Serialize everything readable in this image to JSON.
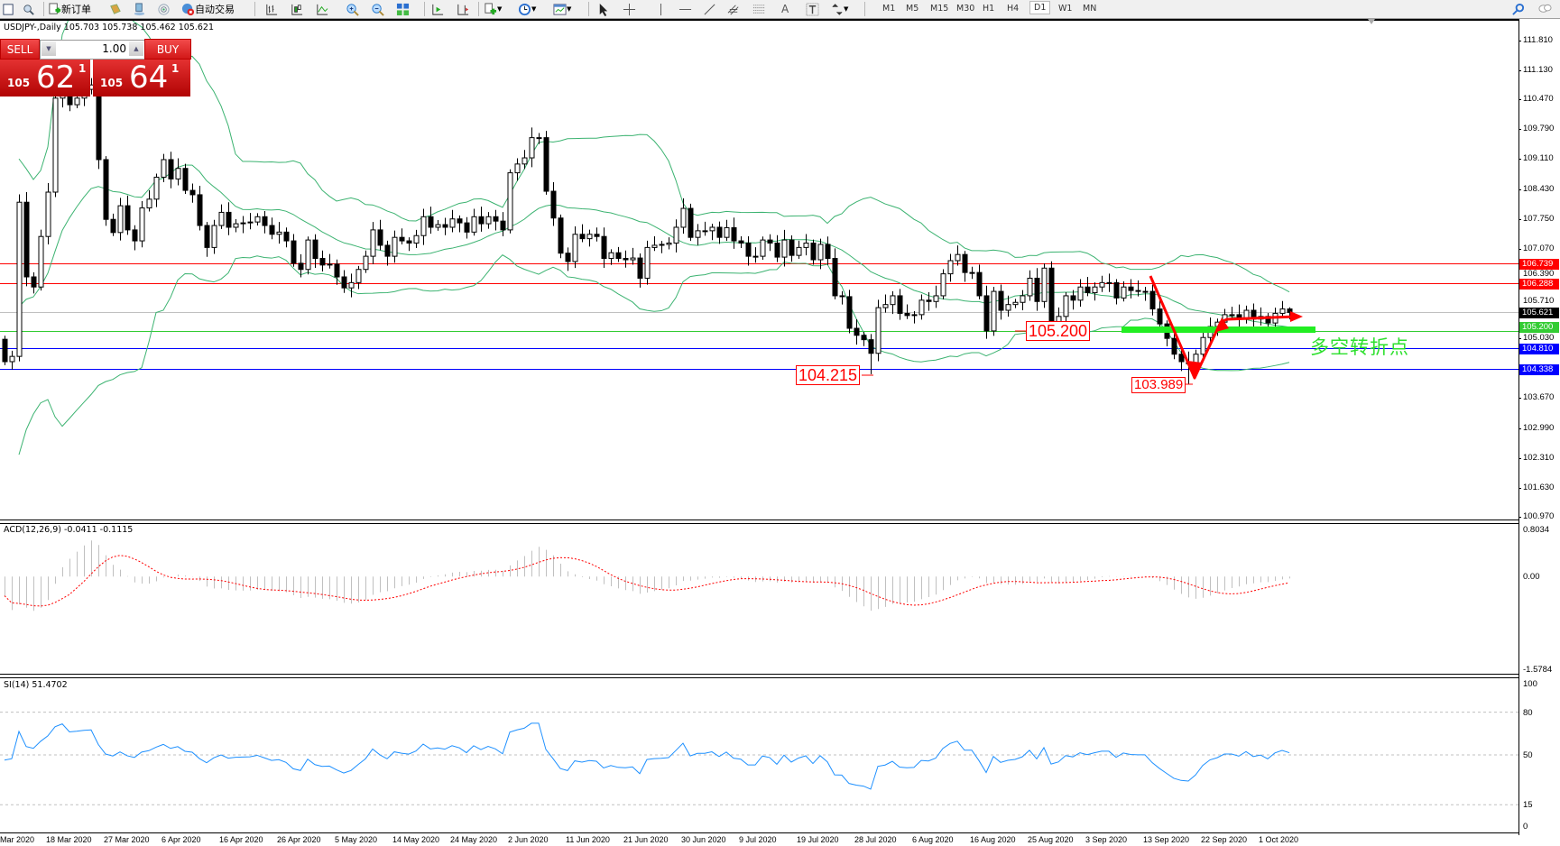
{
  "toolbar": {
    "new_order": "新订单",
    "auto_trading": "自动交易",
    "timeframes": [
      "M1",
      "M5",
      "M15",
      "M30",
      "H1",
      "H4",
      "D1",
      "W1",
      "MN"
    ],
    "active_timeframe": "D1",
    "icons": [
      "new-chart-icon",
      "navigator-icon",
      "new-order-icon",
      "metaeditor-icon",
      "market-watch-icon",
      "signals-icon",
      "auto-trading-icon",
      "bar-chart-icon",
      "candlestick-icon",
      "line-chart-icon",
      "zoom-in-icon",
      "zoom-out-icon",
      "tile-windows-icon",
      "autoscroll-icon",
      "chart-shift-icon",
      "indicators-icon",
      "periods-icon",
      "templates-icon",
      "cursor-icon",
      "crosshair-icon",
      "vertical-line-icon",
      "horizontal-line-icon",
      "trendline-icon",
      "equidistant-channel-icon",
      "fibonacci-icon",
      "text-icon",
      "text-label-icon",
      "arrows-icon",
      "search-icon",
      "chat-icon"
    ]
  },
  "chart": {
    "symbol_info": "USDJPY-,Daily  105.703 105.738 105.462 105.621",
    "price_ticks": [
      "111.810",
      "111.130",
      "110.470",
      "109.790",
      "109.110",
      "108.430",
      "107.750",
      "107.070",
      "106.390",
      "105.710",
      "105.030",
      "103.670",
      "102.990",
      "102.310",
      "101.630",
      "100.970"
    ],
    "price_lines": [
      {
        "value": "106.739",
        "color": "#ff0000"
      },
      {
        "value": "106.288",
        "color": "#ff0000"
      },
      {
        "value": "105.621",
        "color": "#000000",
        "line_color": "#c0c0c0"
      },
      {
        "value": "105.200",
        "color": "#33cc33"
      },
      {
        "value": "104.810",
        "color": "#0000ff"
      },
      {
        "value": "104.338",
        "color": "#0000ff"
      }
    ],
    "annotations": {
      "low_1": {
        "label": "104.215",
        "bar": 120
      },
      "level": {
        "label": "105.200"
      },
      "low_2": {
        "label": "103.989",
        "bar": 164
      },
      "turning_point": "多空转折点"
    },
    "dates": [
      "Mar 2020",
      "18 Mar 2020",
      "27 Mar 2020",
      "6 Apr 2020",
      "16 Apr 2020",
      "26 Apr 2020",
      "5 May 2020",
      "14 May 2020",
      "24 May 2020",
      "2 Jun 2020",
      "11 Jun 2020",
      "21 Jun 2020",
      "30 Jun 2020",
      "9 Jul 2020",
      "19 Jul 2020",
      "28 Jul 2020",
      "6 Aug 2020",
      "16 Aug 2020",
      "25 Aug 2020",
      "3 Sep 2020",
      "13 Sep 2020",
      "22 Sep 2020",
      "1 Oct 2020"
    ],
    "colors": {
      "bands": "#3cb371",
      "macd_hist": "#c0c0c0",
      "macd_signal": "#ff0000",
      "rsi": "#1e90ff",
      "arrow": "#ff0000",
      "support_bar": "#22ee22"
    }
  },
  "trade_panel": {
    "sell": "SELL",
    "buy": "BUY",
    "lot": "1.00",
    "bid": {
      "prefix": "105",
      "main": "62",
      "sup": "1"
    },
    "ask": {
      "prefix": "105",
      "main": "64",
      "sup": "1"
    }
  },
  "macd": {
    "label": "ACD(12,26,9) -0.0411 -0.1115",
    "ticks": [
      "0.8034",
      "0.00",
      "-1.5784"
    ]
  },
  "rsi": {
    "label": "SI(14) 51.4702",
    "ticks": [
      "100",
      "80",
      "50",
      "15",
      "0"
    ],
    "levels": [
      80,
      50,
      15
    ]
  },
  "chart_data": {
    "type": "candlestick",
    "symbol": "USDJPY-",
    "timeframe": "Daily",
    "ylim": [
      100.97,
      111.81
    ],
    "first_open": 105.01,
    "closes": [
      104.5,
      104.62,
      108.13,
      106.43,
      106.2,
      107.35,
      108.36,
      110.5,
      111.3,
      110.35,
      110.5,
      110.7,
      110.8,
      109.1,
      107.74,
      107.44,
      108.05,
      107.5,
      107.25,
      108.0,
      108.2,
      108.7,
      109.1,
      108.66,
      108.9,
      108.4,
      108.3,
      107.6,
      107.1,
      107.6,
      107.9,
      107.56,
      107.64,
      107.66,
      107.68,
      107.8,
      107.6,
      107.4,
      107.45,
      107.25,
      106.74,
      106.6,
      107.27,
      106.85,
      106.7,
      106.72,
      106.43,
      106.18,
      106.3,
      106.6,
      106.9,
      107.5,
      107.15,
      106.9,
      107.33,
      107.25,
      107.2,
      107.37,
      107.8,
      107.56,
      107.62,
      107.56,
      107.75,
      107.66,
      107.45,
      107.8,
      107.64,
      107.8,
      107.7,
      107.5,
      108.8,
      109.0,
      109.14,
      109.6,
      109.6,
      108.38,
      107.77,
      106.97,
      106.78,
      107.4,
      107.3,
      107.4,
      107.35,
      106.85,
      106.98,
      106.85,
      106.82,
      106.86,
      106.4,
      107.1,
      107.15,
      107.17,
      107.2,
      107.56,
      107.99,
      107.33,
      107.48,
      107.48,
      107.56,
      107.33,
      107.55,
      107.25,
      107.2,
      106.9,
      106.9,
      107.27,
      107.2,
      106.88,
      107.27,
      106.92,
      107.1,
      107.2,
      106.82,
      107.17,
      106.85,
      106.0,
      105.98,
      105.26,
      105.1,
      105.0,
      104.69,
      105.73,
      105.8,
      106.0,
      105.6,
      105.55,
      105.57,
      105.9,
      105.87,
      106.0,
      106.5,
      106.8,
      106.94,
      106.53,
      106.53,
      106.0,
      105.2,
      106.1,
      105.67,
      105.8,
      105.85,
      106.0,
      106.4,
      105.87,
      106.63,
      105.38,
      105.53,
      106.0,
      105.9,
      106.2,
      106.07,
      106.2,
      106.3,
      106.3,
      105.95,
      106.2,
      106.12,
      106.1,
      106.1,
      105.7,
      105.36,
      105.03,
      104.67,
      104.5,
      104.45,
      104.67,
      105.05,
      105.3,
      105.4,
      105.57,
      105.57,
      105.48,
      105.67,
      105.47,
      105.53,
      105.38,
      105.6,
      105.7,
      105.621
    ],
    "last_bar": {
      "open": 105.703,
      "high": 105.738,
      "low": 105.462,
      "close": 105.621
    },
    "indicators": [
      "Bollinger Bands(20,2)",
      "MACD(12,26,9)",
      "RSI(14)"
    ],
    "macd_ylim": [
      -1.5784,
      0.8034
    ],
    "rsi_ylim": [
      0,
      100
    ]
  }
}
